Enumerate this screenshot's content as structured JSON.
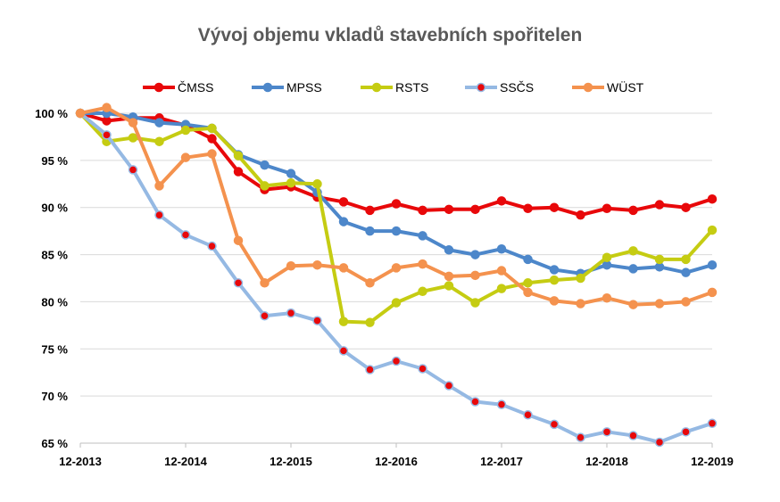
{
  "chart_data": {
    "type": "line",
    "title": "Vývoj objemu vkladů stavebních spořitelen",
    "xlabel": "",
    "ylabel": "",
    "x_tick_labels": [
      "12-2013",
      "12-2014",
      "12-2015",
      "12-2016",
      "12-2017",
      "12-2018",
      "12-2019"
    ],
    "y_tick_labels": [
      "100 %",
      "95 %",
      "90 %",
      "85 %",
      "80 %",
      "75 %",
      "70 %",
      "65 %"
    ],
    "y_ticks": [
      100,
      95,
      90,
      85,
      80,
      75,
      70,
      65
    ],
    "ylim": [
      65,
      100
    ],
    "x_count": 25,
    "x_tick_every": 4,
    "grid": "horizontal",
    "legend_position": "top",
    "series": [
      {
        "name": "ČMSS",
        "color": "#e8080a",
        "marker": "dot",
        "marker_fill": "#e8080a",
        "values": [
          100,
          99.2,
          99.5,
          99.5,
          98.7,
          97.3,
          93.8,
          91.9,
          92.2,
          91.1,
          90.6,
          89.7,
          90.4,
          89.7,
          89.8,
          89.8,
          90.7,
          89.9,
          90.0,
          89.2,
          89.9,
          89.7,
          90.3,
          90.0,
          90.9
        ]
      },
      {
        "name": "MPSS",
        "color": "#4d87ca",
        "marker": "dot",
        "marker_fill": "#4d87ca",
        "values": [
          100,
          100.0,
          99.6,
          99.0,
          98.8,
          98.4,
          95.6,
          94.5,
          93.6,
          91.6,
          88.5,
          87.5,
          87.5,
          87.0,
          85.5,
          85.0,
          85.6,
          84.5,
          83.4,
          83.0,
          83.9,
          83.5,
          83.7,
          83.1,
          83.9
        ]
      },
      {
        "name": "RSTS",
        "color": "#c5cc12",
        "marker": "dot",
        "marker_fill": "#c5cc12",
        "values": [
          100,
          97.0,
          97.4,
          97.0,
          98.2,
          98.4,
          95.5,
          92.3,
          92.6,
          92.5,
          77.9,
          77.8,
          79.9,
          81.1,
          81.7,
          79.9,
          81.4,
          82.0,
          82.3,
          82.5,
          84.7,
          85.4,
          84.5,
          84.5,
          87.6
        ]
      },
      {
        "name": "SSČS",
        "color": "#95b9e3",
        "marker": "dot",
        "marker_fill": "#e8080a",
        "values": [
          100,
          97.7,
          94.0,
          89.2,
          87.1,
          85.9,
          82.0,
          78.5,
          78.8,
          78.0,
          74.8,
          72.8,
          73.7,
          72.9,
          71.1,
          69.4,
          69.1,
          68.0,
          67.0,
          65.6,
          66.2,
          65.8,
          65.1,
          66.2,
          67.1
        ]
      },
      {
        "name": "WÜST",
        "color": "#f4924e",
        "marker": "dot",
        "marker_fill": "#f4924e",
        "values": [
          100,
          100.6,
          99.0,
          92.3,
          95.3,
          95.7,
          86.5,
          82.0,
          83.8,
          83.9,
          83.6,
          82.0,
          83.6,
          84.0,
          82.7,
          82.8,
          83.3,
          81.0,
          80.1,
          79.8,
          80.4,
          79.7,
          79.8,
          80.0,
          81.0
        ]
      }
    ]
  }
}
